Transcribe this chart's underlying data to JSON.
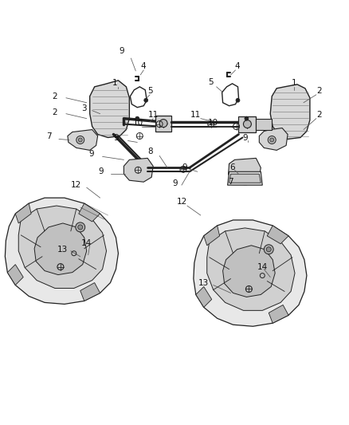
{
  "bg_color": "#ffffff",
  "fig_width": 4.38,
  "fig_height": 5.33,
  "dpi": 100,
  "line_color": "#444444",
  "dark_color": "#222222",
  "mid_color": "#666666",
  "light_color": "#aaaaaa",
  "label_fontsize": 7.5,
  "label_color": "#111111",
  "labels_left": [
    [
      "9",
      155,
      68
    ],
    [
      "1",
      148,
      108
    ],
    [
      "4",
      178,
      88
    ],
    [
      "2",
      72,
      122
    ],
    [
      "2",
      72,
      142
    ],
    [
      "3",
      108,
      138
    ],
    [
      "5",
      185,
      118
    ],
    [
      "11",
      190,
      148
    ],
    [
      "10",
      175,
      158
    ],
    [
      "7",
      65,
      172
    ],
    [
      "9",
      148,
      178
    ],
    [
      "9",
      118,
      198
    ],
    [
      "8",
      185,
      195
    ],
    [
      "9",
      130,
      220
    ],
    [
      "12",
      100,
      235
    ],
    [
      "13",
      82,
      318
    ],
    [
      "14",
      110,
      308
    ]
  ],
  "labels_right": [
    [
      "4",
      295,
      88
    ],
    [
      "5",
      268,
      108
    ],
    [
      "1",
      368,
      108
    ],
    [
      "2",
      400,
      118
    ],
    [
      "11",
      248,
      148
    ],
    [
      "10",
      270,
      158
    ],
    [
      "9",
      308,
      178
    ],
    [
      "9",
      235,
      215
    ],
    [
      "6",
      290,
      215
    ],
    [
      "7",
      290,
      232
    ],
    [
      "2",
      400,
      148
    ],
    [
      "9",
      222,
      235
    ],
    [
      "12",
      230,
      258
    ],
    [
      "13",
      258,
      360
    ],
    [
      "14",
      328,
      340
    ]
  ]
}
